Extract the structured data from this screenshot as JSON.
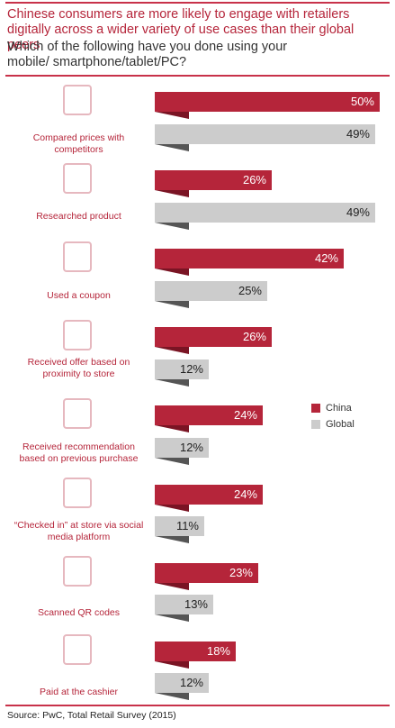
{
  "chart_data": {
    "type": "bar",
    "title": "Chinese consumers are more likely to engage with retailers digitally across a wider variety of use cases than their global peers",
    "subtitle": "Which of the following have you done using your mobile/ smartphone/tablet/PC?",
    "categories": [
      "Compared prices with competitors",
      "Researched product",
      "Used a coupon",
      "Received offer based on proximity to store",
      "Received recommendation based on previous purchase",
      "“Checked in” at store via social media platform",
      "Scanned QR codes",
      "Paid at the cashier"
    ],
    "series": [
      {
        "name": "China",
        "color": "#b5253a",
        "values": [
          50,
          26,
          42,
          26,
          24,
          24,
          23,
          18
        ],
        "value_labels": [
          "50%",
          "26%",
          "42%",
          "26%",
          "24%",
          "24%",
          "23%",
          "18%"
        ]
      },
      {
        "name": "Global",
        "color": "#cccccc",
        "values": [
          49,
          49,
          25,
          12,
          12,
          11,
          13,
          12
        ],
        "value_labels": [
          "49%",
          "49%",
          "25%",
          "12%",
          "12%",
          "11%",
          "13%",
          "12%"
        ]
      }
    ],
    "source": "Source: PwC, Total Retail Survey (2015)"
  }
}
